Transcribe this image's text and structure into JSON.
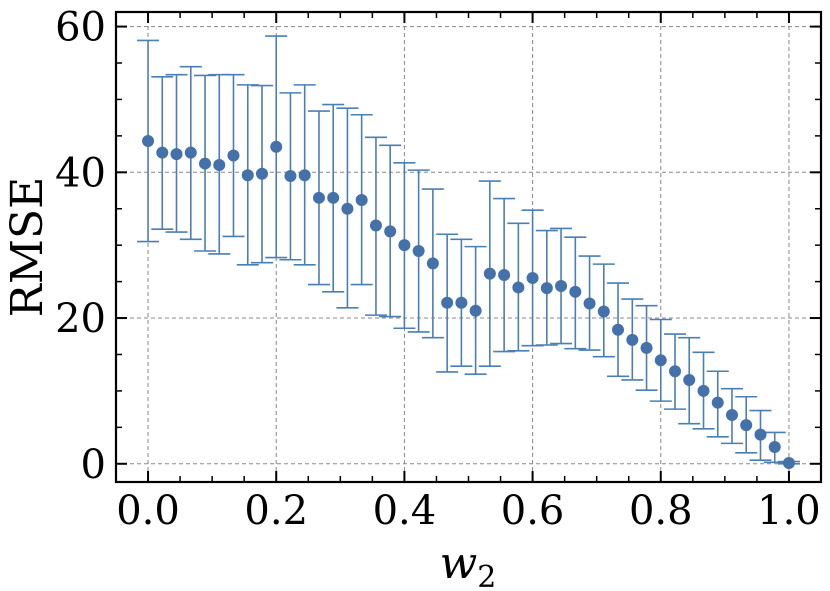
{
  "chart_data": {
    "type": "scatter",
    "title": "",
    "xlabel": "w",
    "xlabel_subscript": "2",
    "ylabel": "RMSE",
    "xlim": [
      -0.05,
      1.05
    ],
    "ylim": [
      -2.5,
      62
    ],
    "xticks": [
      0.0,
      0.2,
      0.4,
      0.6,
      0.8,
      1.0
    ],
    "xtick_labels": [
      "0.0",
      "0.2",
      "0.4",
      "0.6",
      "0.8",
      "1.0"
    ],
    "yticks": [
      0,
      20,
      40,
      60
    ],
    "ytick_labels": [
      "0",
      "20",
      "40",
      "60"
    ],
    "grid": true,
    "legend": "none",
    "marker_color": "#4471a9",
    "errorbar_color": "#4a7fb5",
    "grid_color": "#888888",
    "series": [
      {
        "x": [
          0.0,
          0.0222,
          0.0444,
          0.0667,
          0.0889,
          0.1111,
          0.1333,
          0.1556,
          0.1778,
          0.2,
          0.2222,
          0.2444,
          0.2667,
          0.2889,
          0.3111,
          0.3333,
          0.3556,
          0.3778,
          0.4,
          0.4222,
          0.4444,
          0.4667,
          0.4889,
          0.5111,
          0.5333,
          0.5556,
          0.5778,
          0.6,
          0.6222,
          0.6444,
          0.6667,
          0.6889,
          0.7111,
          0.7333,
          0.7556,
          0.7778,
          0.8,
          0.8222,
          0.8444,
          0.8667,
          0.8889,
          0.9111,
          0.9333,
          0.9556,
          0.9778,
          1.0
        ],
        "y": [
          44.3,
          42.7,
          42.5,
          42.7,
          41.2,
          41.0,
          42.3,
          39.6,
          39.8,
          43.5,
          39.5,
          39.6,
          36.5,
          36.5,
          35.0,
          36.2,
          32.7,
          31.9,
          30.0,
          29.2,
          27.5,
          22.1,
          22.1,
          21.0,
          26.1,
          25.9,
          24.2,
          25.5,
          24.1,
          24.4,
          23.6,
          22.0,
          20.9,
          18.4,
          17.0,
          15.9,
          14.2,
          12.7,
          11.5,
          10.0,
          8.4,
          6.7,
          5.3,
          4.0,
          2.3,
          0.1
        ],
        "yerr_low": [
          30.5,
          32.2,
          31.8,
          30.8,
          29.2,
          28.8,
          31.2,
          27.3,
          27.6,
          28.3,
          28.0,
          27.3,
          24.6,
          23.6,
          21.4,
          24.6,
          20.4,
          20.2,
          18.6,
          18.1,
          17.3,
          12.6,
          13.4,
          12.3,
          13.4,
          15.4,
          15.5,
          16.2,
          16.3,
          16.5,
          15.8,
          15.6,
          14.7,
          12.0,
          11.5,
          10.1,
          8.6,
          7.5,
          5.5,
          4.8,
          3.7,
          2.8,
          1.5,
          0.5,
          0.2,
          0.0
        ],
        "yerr_high": [
          58.1,
          53.1,
          53.4,
          54.5,
          53.3,
          53.4,
          53.4,
          52.0,
          51.9,
          58.7,
          50.9,
          52.0,
          48.4,
          49.3,
          48.8,
          47.9,
          44.8,
          43.7,
          41.3,
          40.3,
          37.7,
          31.5,
          30.8,
          29.8,
          38.8,
          36.4,
          33.0,
          34.8,
          32.0,
          32.3,
          31.1,
          28.5,
          27.4,
          24.8,
          22.6,
          21.7,
          19.8,
          17.8,
          17.3,
          15.3,
          12.7,
          10.3,
          9.2,
          7.3,
          4.3,
          0.3
        ]
      }
    ]
  }
}
